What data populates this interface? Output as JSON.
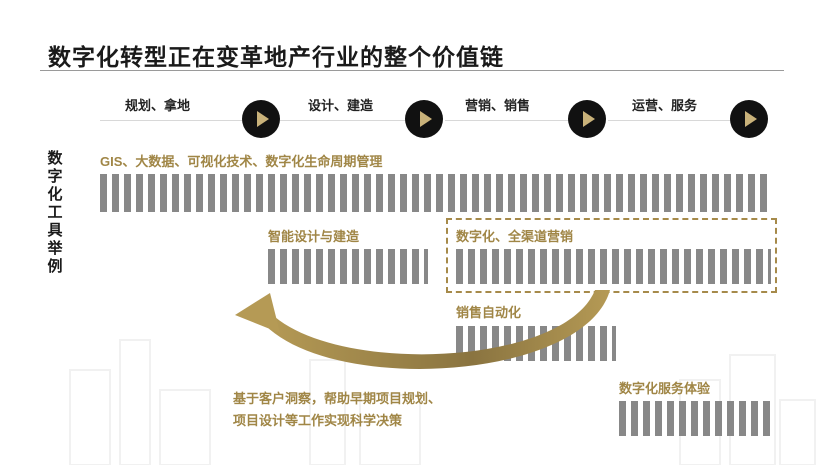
{
  "title": "数字化转型正在变革地产行业的整个价值链",
  "stages": [
    {
      "label": "规划、拿地"
    },
    {
      "label": "设计、建造"
    },
    {
      "label": "营销、销售"
    },
    {
      "label": "运营、服务"
    }
  ],
  "side_label": "数字化工具举例",
  "tools": {
    "gis": "GIS、大数据、可视化技术、数字化生命周期管理",
    "smart_design": "智能设计与建造",
    "omni_channel": "数字化、全渠道营销",
    "sales_auto": "销售自动化",
    "service": "数字化服务体验"
  },
  "insight": {
    "line1": "基于客户洞察，帮助早期项目规划、",
    "line2": "项目设计等工作实现科学决策"
  },
  "colors": {
    "gold": "#a08646",
    "bar": "#888888",
    "dark": "#111111"
  },
  "icons": [
    "play-arrow-icon",
    "curved-arrow-icon"
  ]
}
